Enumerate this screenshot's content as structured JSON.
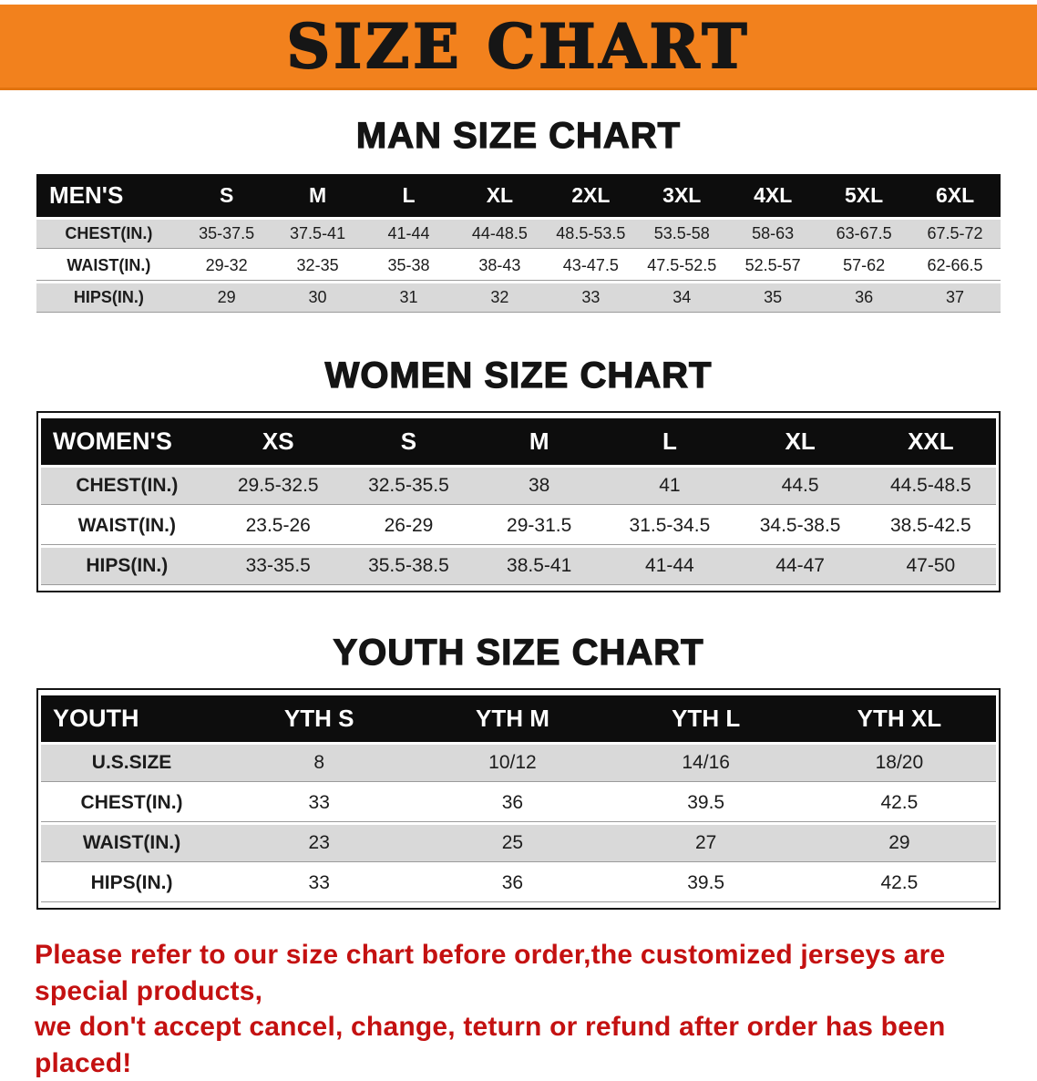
{
  "banner": {
    "title": "SIZE CHART"
  },
  "chart_data": [
    {
      "type": "table",
      "title": "MAN SIZE CHART",
      "columns": [
        "MEN'S",
        "S",
        "M",
        "L",
        "XL",
        "2XL",
        "3XL",
        "4XL",
        "5XL",
        "6XL"
      ],
      "rows": [
        [
          "CHEST(IN.)",
          "35-37.5",
          "37.5-41",
          "41-44",
          "44-48.5",
          "48.5-53.5",
          "53.5-58",
          "58-63",
          "63-67.5",
          "67.5-72"
        ],
        [
          "WAIST(IN.)",
          "29-32",
          "32-35",
          "35-38",
          "38-43",
          "43-47.5",
          "47.5-52.5",
          "52.5-57",
          "57-62",
          "62-66.5"
        ],
        [
          "HIPS(IN.)",
          "29",
          "30",
          "31",
          "32",
          "33",
          "34",
          "35",
          "36",
          "37"
        ]
      ]
    },
    {
      "type": "table",
      "title": "WOMEN SIZE CHART",
      "columns": [
        "WOMEN'S",
        "XS",
        "S",
        "M",
        "L",
        "XL",
        "XXL"
      ],
      "rows": [
        [
          "CHEST(IN.)",
          "29.5-32.5",
          "32.5-35.5",
          "38",
          "41",
          "44.5",
          "44.5-48.5"
        ],
        [
          "WAIST(IN.)",
          "23.5-26",
          "26-29",
          "29-31.5",
          "31.5-34.5",
          "34.5-38.5",
          "38.5-42.5"
        ],
        [
          "HIPS(IN.)",
          "33-35.5",
          "35.5-38.5",
          "38.5-41",
          "41-44",
          "44-47",
          "47-50"
        ]
      ]
    },
    {
      "type": "table",
      "title": "YOUTH SIZE CHART",
      "columns": [
        "YOUTH",
        "YTH S",
        "YTH M",
        "YTH L",
        "YTH XL"
      ],
      "rows": [
        [
          "U.S.SIZE",
          "8",
          "10/12",
          "14/16",
          "18/20"
        ],
        [
          "CHEST(IN.)",
          "33",
          "36",
          "39.5",
          "42.5"
        ],
        [
          "WAIST(IN.)",
          "23",
          "25",
          "27",
          "29"
        ],
        [
          "HIPS(IN.)",
          "33",
          "36",
          "39.5",
          "42.5"
        ]
      ]
    }
  ],
  "footer": {
    "line1": "Please refer to our size chart before order,the customized jerseys are special products,",
    "line2": "we don't accept cancel, change, teturn or refund after order has been placed!"
  },
  "colors": {
    "banner_bg": "#f2811d",
    "table_header_bg": "#0d0d0d",
    "shaded_row_bg": "#d9d9d9",
    "disclaimer_text": "#c41111"
  }
}
